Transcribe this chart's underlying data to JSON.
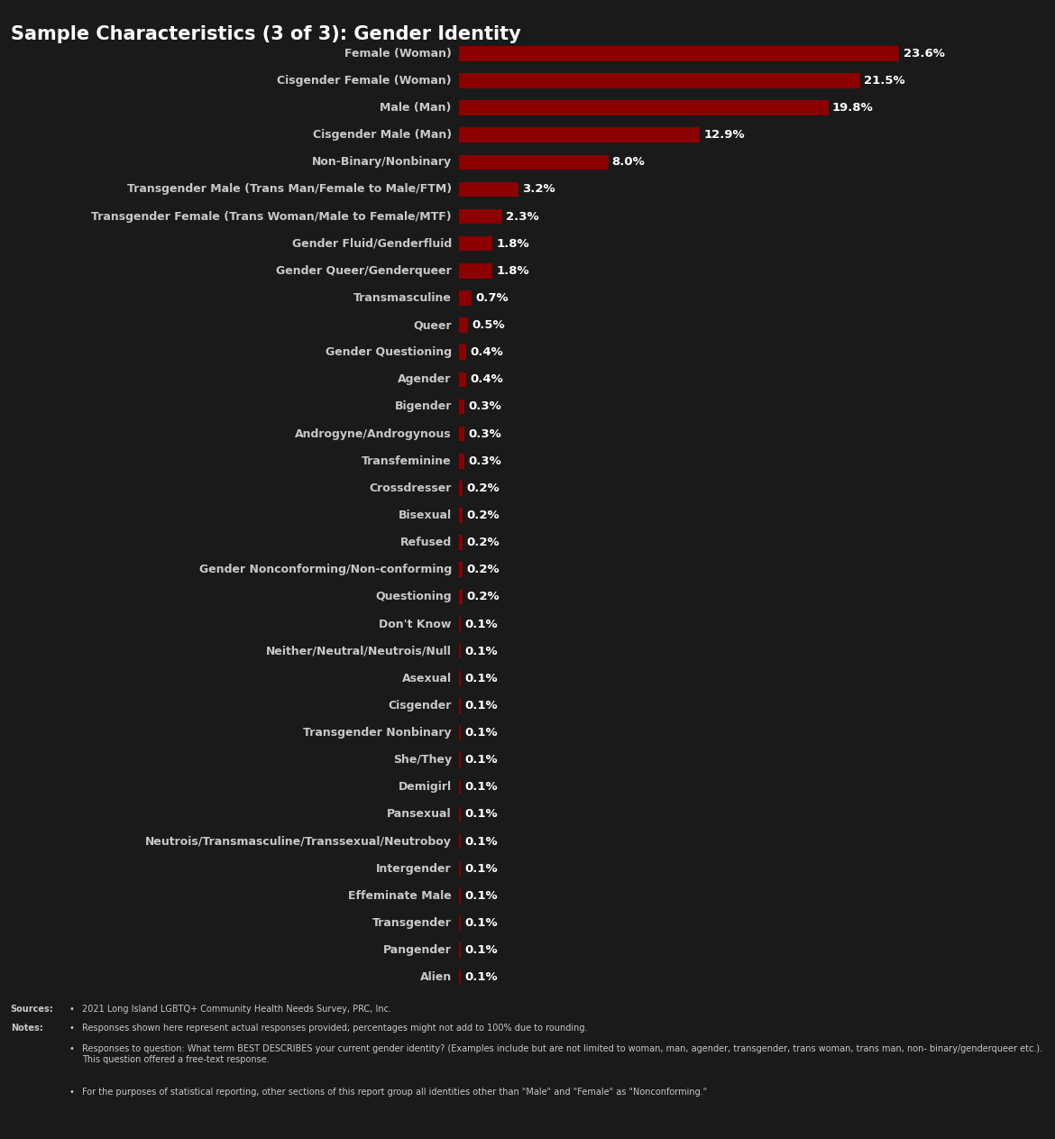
{
  "title": "Sample Characteristics (3 of 3): Gender Identity",
  "background_color": "#1a1a1a",
  "title_color": "#ffffff",
  "bar_color": "#8b0000",
  "text_color": "#c8c8c8",
  "label_color": "#c8c8c8",
  "value_label_color": "#ffffff",
  "categories": [
    "Female (Woman)",
    "Cisgender Female (Woman)",
    "Male (Man)",
    "Cisgender Male (Man)",
    "Non-Binary/Nonbinary",
    "Transgender Male (Trans Man/Female to Male/FTM)",
    "Transgender Female (Trans Woman/Male to Female/MTF)",
    "Gender Fluid/Genderfluid",
    "Gender Queer/Genderqueer",
    "Transmasculine",
    "Queer",
    "Gender Questioning",
    "Agender",
    "Bigender",
    "Androgyne/Androgynous",
    "Transfeminine",
    "Crossdresser",
    "Bisexual",
    "Refused",
    "Gender Nonconforming/Non-conforming",
    "Questioning",
    "Don't Know",
    "Neither/Neutral/Neutrois/Null",
    "Asexual",
    "Cisgender",
    "Transgender Nonbinary",
    "She/They",
    "Demigirl",
    "Pansexual",
    "Neutrois/Transmasculine/Transsexual/Neutroboy",
    "Intergender",
    "Effeminate Male",
    "Transgender",
    "Pangender",
    "Alien"
  ],
  "values": [
    23.6,
    21.5,
    19.8,
    12.9,
    8.0,
    3.2,
    2.3,
    1.8,
    1.8,
    0.7,
    0.5,
    0.4,
    0.4,
    0.3,
    0.3,
    0.3,
    0.2,
    0.2,
    0.2,
    0.2,
    0.2,
    0.1,
    0.1,
    0.1,
    0.1,
    0.1,
    0.1,
    0.1,
    0.1,
    0.1,
    0.1,
    0.1,
    0.1,
    0.1,
    0.1
  ],
  "value_labels": [
    "23.6%",
    "21.5%",
    "19.8%",
    "12.9%",
    "8.0%",
    "3.2%",
    "2.3%",
    "1.8%",
    "1.8%",
    "0.7%",
    "0.5%",
    "0.4%",
    "0.4%",
    "0.3%",
    "0.3%",
    "0.3%",
    "0.2%",
    "0.2%",
    "0.2%",
    "0.2%",
    "0.2%",
    "0.1%",
    "0.1%",
    "0.1%",
    "0.1%",
    "0.1%",
    "0.1%",
    "0.1%",
    "0.1%",
    "0.1%",
    "0.1%",
    "0.1%",
    "0.1%",
    "0.1%",
    "0.1%"
  ],
  "sources_label": "Sources:",
  "notes_label": "Notes:",
  "source_text": "2021 Long Island LGBTQ+ Community Health Needs Survey, PRC, Inc.",
  "note1": "Responses shown here represent actual responses provided; percentages might not add to 100% due to rounding.",
  "note2": "Responses to question: What term BEST DESCRIBES your current gender identity? (Examples include but are not limited to woman, man, agender, transgender, trans woman, trans man, non- binary/genderqueer etc.).  This question offered a free-text response.",
  "note3": "For the purposes of statistical reporting, other sections of this report group all identities other than \"Male\" and \"Female\" as \"Nonconforming.\""
}
